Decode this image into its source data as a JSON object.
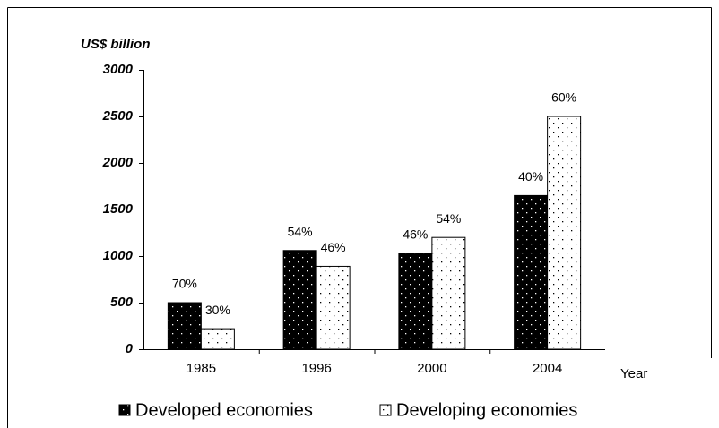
{
  "chart_data": {
    "type": "bar",
    "y_label": "US$ billion",
    "x_label": "Year",
    "categories": [
      "1985",
      "1996",
      "2000",
      "2004"
    ],
    "series": [
      {
        "name": "Developed economies",
        "color": "#000000",
        "values": [
          500,
          1060,
          1030,
          1650
        ],
        "labels": [
          "70%",
          "54%",
          "46%",
          "40%"
        ]
      },
      {
        "name": "Developing economies",
        "color": "#ffffff",
        "values": [
          220,
          890,
          1200,
          2500
        ],
        "labels": [
          "30%",
          "46%",
          "54%",
          "60%"
        ]
      }
    ],
    "ylim": [
      0,
      3000
    ],
    "yticks": [
      0,
      500,
      1000,
      1500,
      2000,
      2500,
      3000
    ],
    "grid": false,
    "legend": "bottom"
  }
}
